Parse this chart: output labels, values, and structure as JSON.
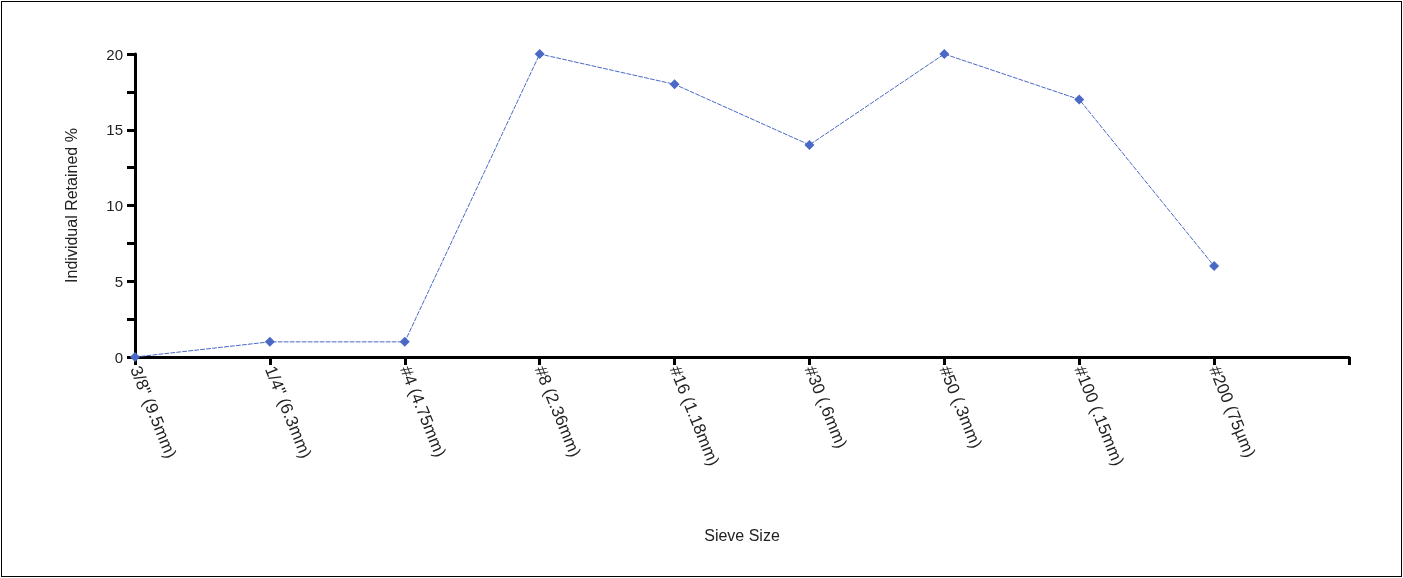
{
  "chart_data": {
    "type": "line",
    "xlabel": "Sieve Size",
    "ylabel": "Individual Retained %",
    "categories": [
      "3/8\" (9.5mm)",
      "1/4\" (6.3mm)",
      "#4 (4.75mm)",
      "#8 (2.36mm)",
      "#16 (1.18mm)",
      "#30 (.6mm)",
      "#50 (.3mm)",
      "#100 (.15mm)",
      "#200 (75µm)",
      null
    ],
    "series": [
      {
        "color": "#4a69c6",
        "values": [
          0,
          1,
          1,
          20,
          18,
          14,
          20,
          17,
          6,
          null
        ]
      }
    ],
    "ylim": [
      0,
      20
    ],
    "yticks": [
      0,
      {
        "value": 2.5,
        "label": null
      },
      5,
      {
        "value": 7.5,
        "label": null
      },
      10,
      {
        "value": 12.5,
        "label": null
      },
      15,
      {
        "value": 17.5,
        "label": null
      },
      20
    ],
    "grid": false,
    "marker": "diamond",
    "line_style": "dashed"
  }
}
